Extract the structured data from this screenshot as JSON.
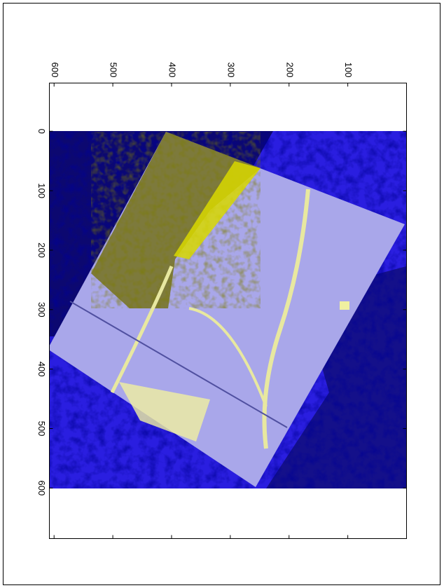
{
  "chart_data": {
    "type": "image",
    "xlim": [
      -81,
      685
    ],
    "xticks": [
      0,
      100,
      200,
      300,
      400,
      500,
      600
    ],
    "ylim": [
      0,
      608
    ],
    "yticks": [
      100,
      200,
      300,
      400,
      500,
      600
    ]
  }
}
